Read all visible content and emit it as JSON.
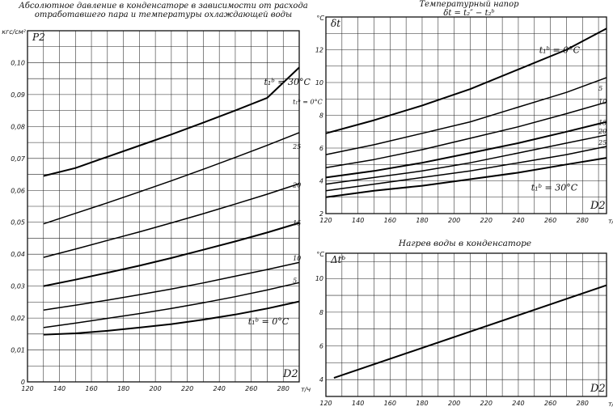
{
  "chart_data": [
    {
      "type": "line",
      "id": "pressure",
      "title": "Абсолютное давление в конденсаторе в зависимости от расхода отработавшего пара и температуры охлаждающей воды",
      "xlabel": "D2",
      "x_unit": "т/ч",
      "ylabel": "P2",
      "y_unit": "кгс/см²",
      "xlim": [
        120,
        290
      ],
      "ylim": [
        0,
        0.11
      ],
      "grid": true,
      "xticks": [
        "120",
        "140",
        "160",
        "180",
        "200",
        "220",
        "240",
        "260",
        "280"
      ],
      "yticks": [
        "0",
        "0,01",
        "0,02",
        "0,03",
        "0,04",
        "0,05",
        "0,06",
        "0,07",
        "0,08",
        "0,09",
        "0,10"
      ],
      "annotations": [
        "t₁ᵇ = 30°C",
        "t₁ᵇ = 0°C",
        "25",
        "20",
        "15",
        "10",
        "5"
      ],
      "x": [
        130,
        150,
        170,
        190,
        210,
        230,
        250,
        270,
        290
      ],
      "series": [
        {
          "name": "t₁ᵇ = 0°C",
          "values": [
            0.0148,
            0.0152,
            0.016,
            0.017,
            0.0181,
            0.0195,
            0.0211,
            0.023,
            0.0252
          ]
        },
        {
          "name": "5",
          "values": [
            0.017,
            0.0184,
            0.0199,
            0.0214,
            0.023,
            0.0248,
            0.0267,
            0.0288,
            0.0311
          ]
        },
        {
          "name": "10",
          "values": [
            0.0225,
            0.024,
            0.0256,
            0.0273,
            0.0291,
            0.031,
            0.0331,
            0.0352,
            0.0374
          ]
        },
        {
          "name": "15",
          "values": [
            0.03,
            0.032,
            0.0342,
            0.0364,
            0.0388,
            0.0414,
            0.044,
            0.0468,
            0.0498
          ]
        },
        {
          "name": "20",
          "values": [
            0.039,
            0.0416,
            0.0443,
            0.047,
            0.0498,
            0.0527,
            0.0557,
            0.0588,
            0.0621
          ]
        },
        {
          "name": "25",
          "values": [
            0.0495,
            0.0528,
            0.0561,
            0.0595,
            0.063,
            0.0666,
            0.0703,
            0.0741,
            0.0781
          ]
        },
        {
          "name": "t₁ᵇ = 30°C",
          "values": [
            0.0645,
            0.067,
            0.0705,
            0.074,
            0.0775,
            0.0812,
            0.085,
            0.089,
            0.0985
          ]
        }
      ]
    },
    {
      "type": "line",
      "id": "temp-head",
      "title": "Температурный напор",
      "subtitle": "δt = t₂″ − t₂ᵇ",
      "xlabel": "D2",
      "x_unit": "т/ч",
      "ylabel": "δt",
      "y_unit": "°C",
      "xlim": [
        120,
        295
      ],
      "ylim": [
        2,
        14
      ],
      "grid": true,
      "xticks": [
        "120",
        "140",
        "160",
        "180",
        "200",
        "220",
        "240",
        "260",
        "280"
      ],
      "yticks": [
        "2",
        "4",
        "6",
        "8",
        "10",
        "12"
      ],
      "annotations": [
        "t₁ᵇ = 0°C",
        "5",
        "10",
        "15",
        "20",
        "25",
        "t₁ᵇ = 30°C"
      ],
      "x": [
        120,
        150,
        180,
        210,
        240,
        270,
        295
      ],
      "series": [
        {
          "name": "t₁ᵇ = 0°C",
          "values": [
            6.9,
            7.7,
            8.6,
            9.6,
            10.8,
            12.0,
            13.3
          ]
        },
        {
          "name": "5",
          "values": [
            5.6,
            6.2,
            6.9,
            7.6,
            8.5,
            9.4,
            10.3
          ]
        },
        {
          "name": "10",
          "values": [
            4.8,
            5.3,
            5.9,
            6.6,
            7.3,
            8.1,
            8.8
          ]
        },
        {
          "name": "15",
          "values": [
            4.2,
            4.6,
            5.1,
            5.7,
            6.3,
            7.0,
            7.6
          ]
        },
        {
          "name": "20",
          "values": [
            3.8,
            4.2,
            4.6,
            5.1,
            5.7,
            6.3,
            6.8
          ]
        },
        {
          "name": "25",
          "values": [
            3.4,
            3.8,
            4.2,
            4.6,
            5.1,
            5.6,
            6.1
          ]
        },
        {
          "name": "t₁ᵇ = 30°C",
          "values": [
            3.0,
            3.4,
            3.7,
            4.1,
            4.5,
            5.0,
            5.4
          ]
        }
      ]
    },
    {
      "type": "line",
      "id": "heating",
      "title": "Нагрев воды в конденсаторе",
      "xlabel": "D2",
      "x_unit": "т/ч",
      "ylabel": "Δtᵇ",
      "y_unit": "°C",
      "xlim": [
        120,
        295
      ],
      "ylim": [
        3,
        11.5
      ],
      "grid": true,
      "xticks": [
        "120",
        "140",
        "160",
        "180",
        "200",
        "220",
        "240",
        "260",
        "280"
      ],
      "yticks": [
        "4",
        "6",
        "8",
        "10"
      ],
      "x": [
        125,
        295
      ],
      "series": [
        {
          "values": [
            4.1,
            9.6
          ]
        }
      ]
    }
  ]
}
